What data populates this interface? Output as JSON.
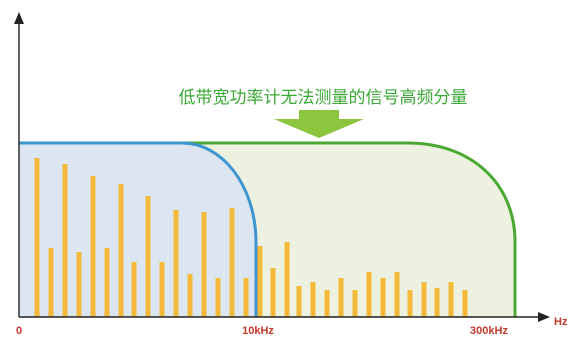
{
  "caption": "低带宽功率计无法测量的信号高频分量",
  "axis": {
    "x_unit": "Hz",
    "tick_labels": [
      "0",
      "10kHz",
      "300kHz"
    ]
  },
  "colors": {
    "caption_text": "#3aa935",
    "arrow_fill": "#8cc63f",
    "low_band_fill": "#dbe6f1",
    "low_band_stroke": "#3f95cf",
    "wide_band_fill": "#edf2e0",
    "wide_band_stroke": "#4aa832",
    "bar_fill": "#f5b93a",
    "tick_label": "#c0392b",
    "axis": "#222222"
  },
  "icons": {
    "arrow": "down-arrow-icon"
  }
}
